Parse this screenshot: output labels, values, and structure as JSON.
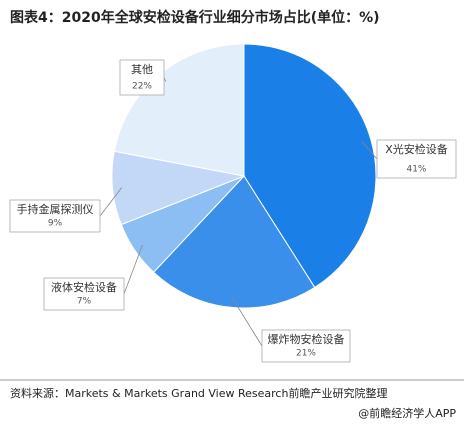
{
  "chart_data": {
    "type": "pie",
    "title": "图表4：2020年全球安检设备行业细分市场占比(单位：%)",
    "categories": [
      "X光安检设备",
      "爆炸物安检设备",
      "液体安检设备",
      "手持金属探测仪",
      "其他"
    ],
    "values": [
      41,
      21,
      7,
      9,
      22
    ],
    "value_labels": [
      "41%",
      "21%",
      "7%",
      "9%",
      "22%"
    ],
    "colors": [
      "#1a7fe6",
      "#3a8fea",
      "#8cbdf3",
      "#c2d8f6",
      "#e3eefb"
    ],
    "source": "资料来源：Markets & Markets Grand View Research前瞻产业研究院整理",
    "footer": "@前瞻经济学人APP"
  }
}
